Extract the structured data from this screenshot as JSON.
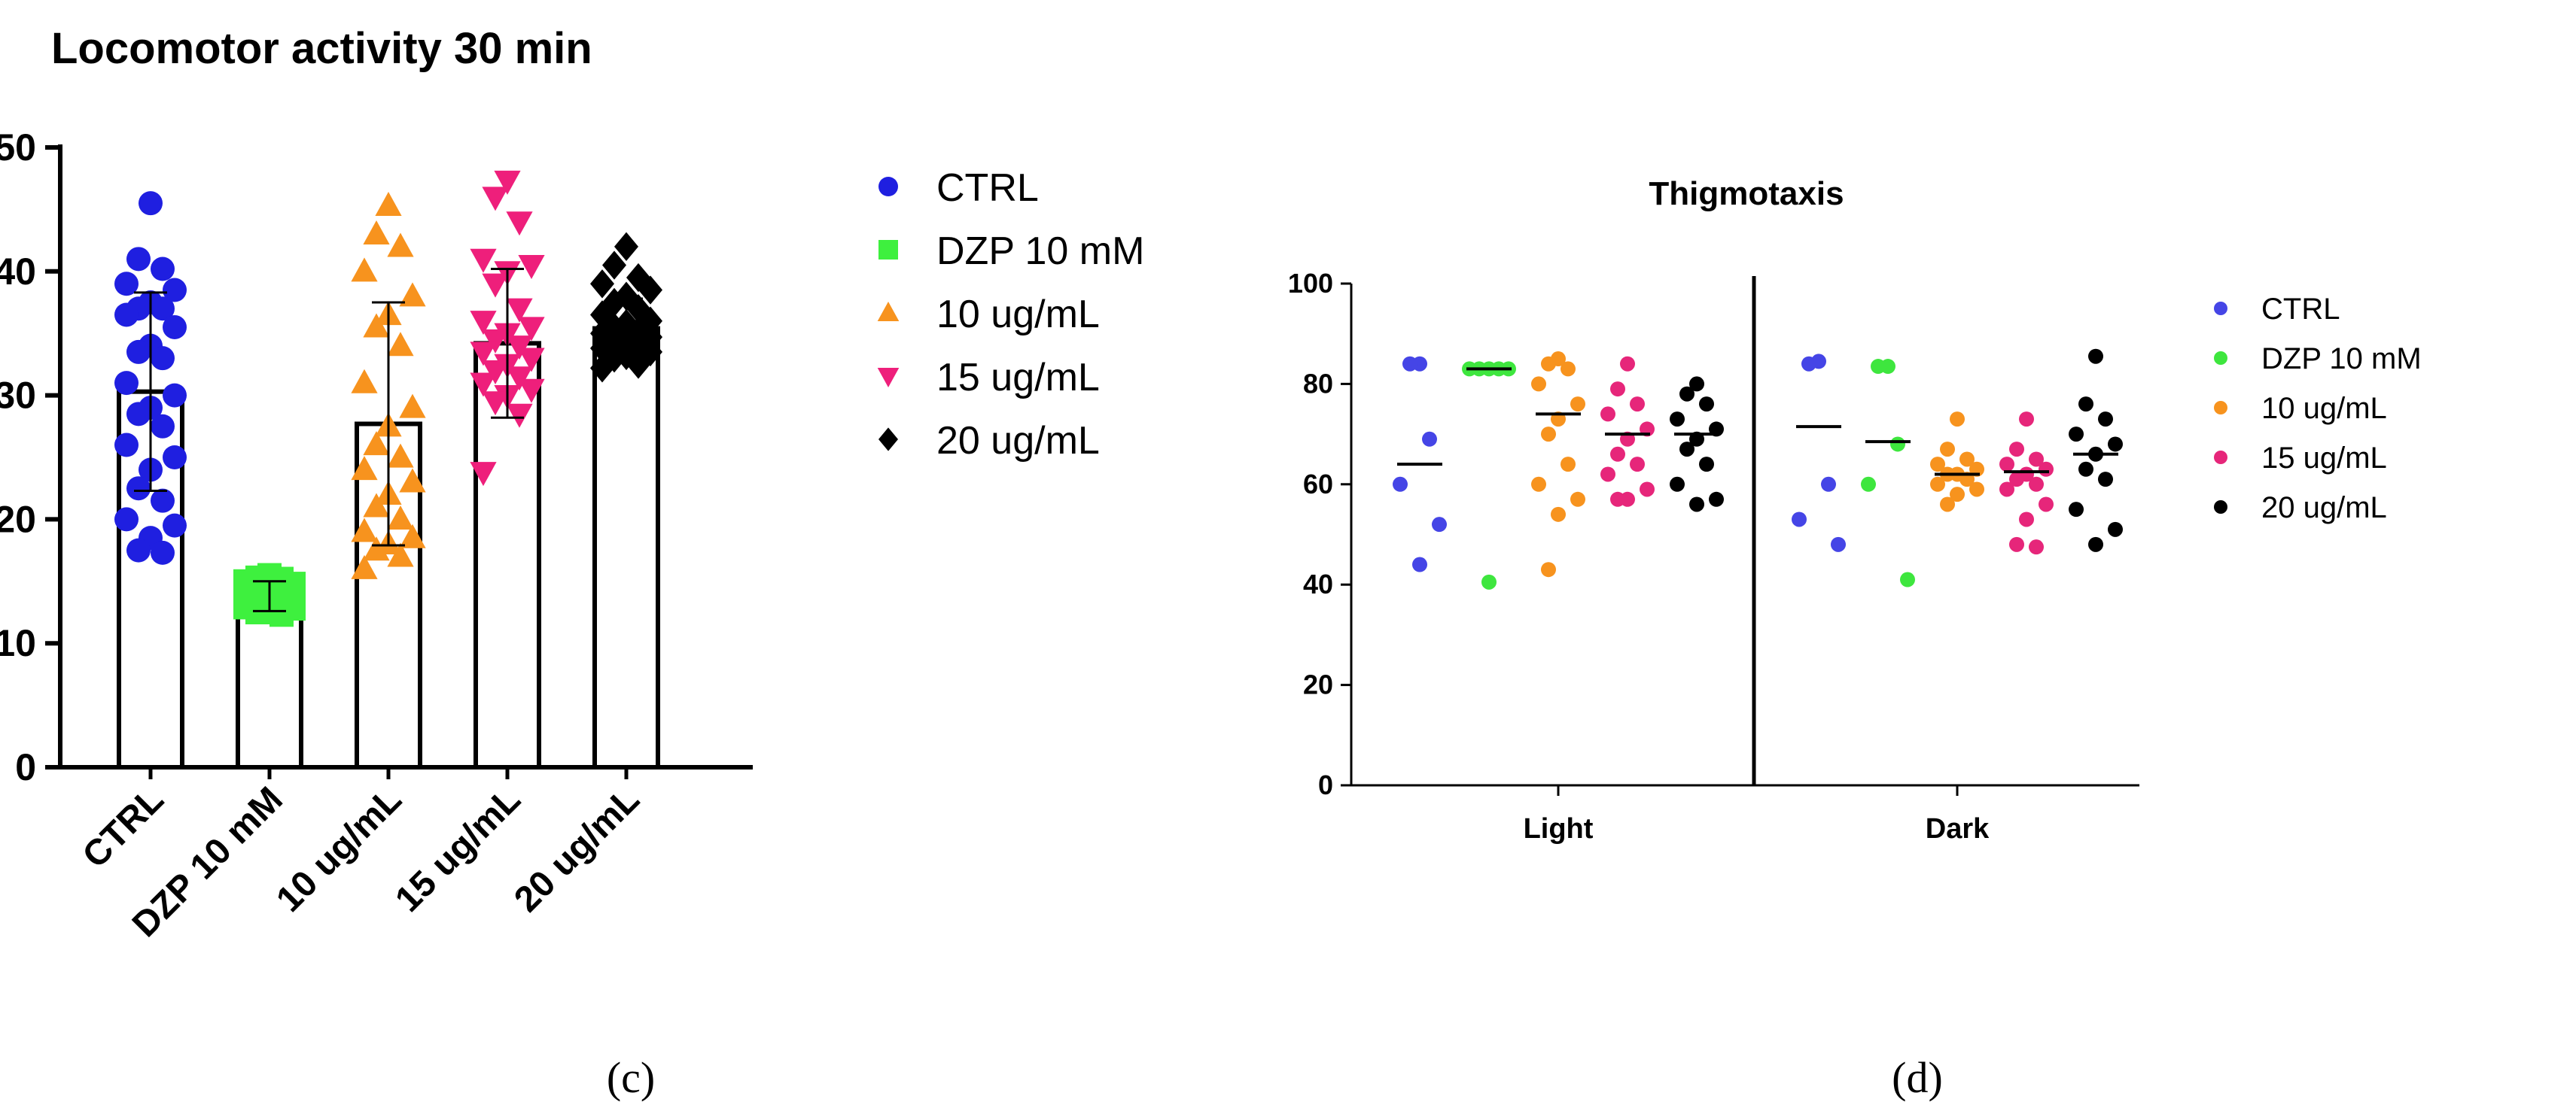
{
  "panels": {
    "c": "(c)",
    "d": "(d)"
  },
  "chart_data": [
    {
      "type": "bar",
      "title": "Locomotor activity 30 min",
      "xlabel": "",
      "ylabel": "",
      "ylim": [
        0,
        50
      ],
      "yticks": [
        0,
        10,
        20,
        30,
        40,
        50
      ],
      "categories": [
        "CTRL",
        "DZP 10 mM",
        "10 ug/mL",
        "15 ug/mL",
        "20 ug/mL"
      ],
      "legend_position": "right",
      "series": [
        {
          "name": "CTRL",
          "color": "#1f1fe0",
          "marker": "circle",
          "mean": 30.3,
          "sd": 8.0,
          "points": [
            45.5,
            41.0,
            40.2,
            39.0,
            38.5,
            37.5,
            37.0,
            37.0,
            36.5,
            35.5,
            34.0,
            33.5,
            33.0,
            31.0,
            30.0,
            29.0,
            28.5,
            27.5,
            26.0,
            25.0,
            24.0,
            22.5,
            21.5,
            20.0,
            19.5,
            18.5,
            17.5,
            17.3
          ]
        },
        {
          "name": "DZP 10 mM",
          "color": "#3ef03e",
          "marker": "square",
          "mean": 13.8,
          "sd": 1.2,
          "points": [
            15.5,
            15.3,
            15.0,
            14.8,
            14.6,
            14.5,
            14.3,
            14.1,
            14.0,
            13.9,
            13.7,
            13.5,
            13.3,
            13.1,
            13.0,
            12.8,
            12.6,
            12.5,
            12.3,
            15.2,
            14.4,
            13.6,
            12.9
          ]
        },
        {
          "name": "10 ug/mL",
          "color": "#f7931e",
          "marker": "triangle-up",
          "mean": 27.7,
          "sd": 9.8,
          "points": [
            45.3,
            43.0,
            42.0,
            40.0,
            38.0,
            36.5,
            35.5,
            34.0,
            31.0,
            29.0,
            27.5,
            26.0,
            25.0,
            24.0,
            23.0,
            22.0,
            21.0,
            20.0,
            19.0,
            18.5,
            18.0,
            17.5,
            17.0,
            16.0
          ]
        },
        {
          "name": "15 ug/mL",
          "color": "#ee1f7b",
          "marker": "triangle-down",
          "mean": 34.2,
          "sd": 6.0,
          "points": [
            47.3,
            46.0,
            44.0,
            41.0,
            40.5,
            40.0,
            39.0,
            37.0,
            36.0,
            35.5,
            35.0,
            34.5,
            34.0,
            33.5,
            33.0,
            32.5,
            32.0,
            31.5,
            31.0,
            30.5,
            30.0,
            29.5,
            28.5,
            23.8
          ]
        },
        {
          "name": "20 ug/mL",
          "color": "#000000",
          "marker": "diamond",
          "mean": 35.4,
          "sd": 2.4,
          "points": [
            42.0,
            40.5,
            39.5,
            39.0,
            38.5,
            38.0,
            37.5,
            37.0,
            36.5,
            36.0,
            35.8,
            35.5,
            35.2,
            35.0,
            34.7,
            34.5,
            34.2,
            34.0,
            33.8,
            33.5,
            33.2,
            33.0,
            32.5,
            32.2
          ]
        }
      ]
    },
    {
      "type": "scatter",
      "title": "Thigmotaxis",
      "ylim": [
        0,
        100
      ],
      "yticks": [
        0,
        20,
        40,
        60,
        80,
        100
      ],
      "categories": [
        "Light",
        "Dark"
      ],
      "legend_position": "right",
      "series": [
        {
          "name": "CTRL",
          "color": "#4545e6",
          "light": [
            84.0,
            84.0,
            69.0,
            60.0,
            52.0,
            44.0
          ],
          "light_median": 64.0,
          "dark": [
            84.5,
            84.0,
            60.0,
            53.0,
            48.0
          ],
          "dark_median": 71.5
        },
        {
          "name": "DZP 10 mM",
          "color": "#3ee63e",
          "light": [
            83.0,
            83.0,
            83.0,
            83.0,
            83.0,
            40.5
          ],
          "light_median": 83.0,
          "dark": [
            83.5,
            83.5,
            68.0,
            60.0,
            41.0
          ],
          "dark_median": 68.5
        },
        {
          "name": "10 ug/mL",
          "color": "#f7931e",
          "light": [
            85.0,
            84.0,
            83.0,
            80.0,
            76.0,
            73.0,
            70.0,
            64.0,
            60.0,
            57.0,
            54.0,
            43.0
          ],
          "light_median": 74.0,
          "dark": [
            73.0,
            67.0,
            65.0,
            64.0,
            63.0,
            62.0,
            62.0,
            61.0,
            60.0,
            59.0,
            58.0,
            56.0
          ],
          "dark_median": 62.0
        },
        {
          "name": "15 ug/mL",
          "color": "#e6267a",
          "light": [
            84.0,
            79.0,
            76.0,
            74.0,
            71.0,
            69.0,
            66.0,
            64.0,
            62.0,
            59.0,
            57.0,
            57.0
          ],
          "light_median": 70.0,
          "dark": [
            73.0,
            67.0,
            65.0,
            64.0,
            63.0,
            62.0,
            61.0,
            60.0,
            59.0,
            56.0,
            53.0,
            48.0,
            47.5
          ],
          "dark_median": 62.5
        },
        {
          "name": "20 ug/mL",
          "color": "#000000",
          "light": [
            80.0,
            78.0,
            76.0,
            73.0,
            71.0,
            69.0,
            67.0,
            64.0,
            60.0,
            57.0,
            56.0
          ],
          "light_median": 70.0,
          "dark": [
            85.5,
            76.0,
            73.0,
            70.0,
            68.0,
            66.0,
            63.0,
            61.0,
            55.0,
            51.0,
            48.0
          ],
          "dark_median": 66.0
        }
      ]
    }
  ]
}
